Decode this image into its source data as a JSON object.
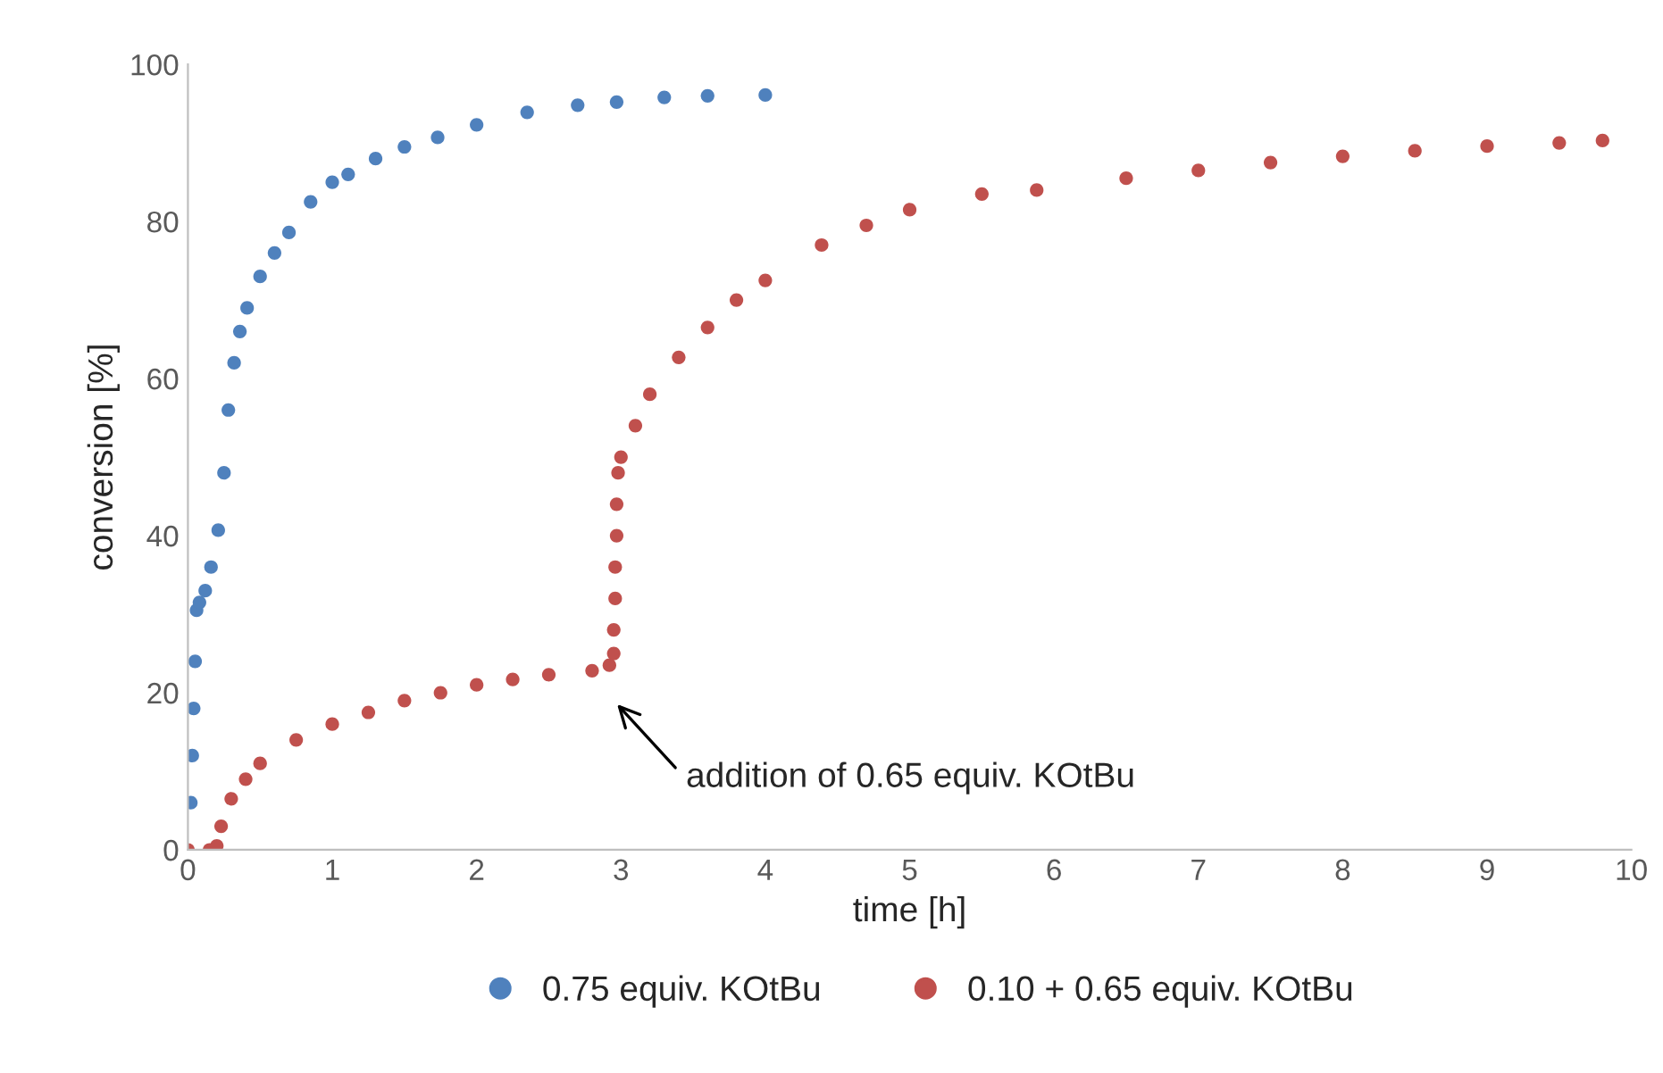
{
  "chart_data": {
    "type": "scatter",
    "xlabel": "time [h]",
    "ylabel": "conversion [%]",
    "xlim": [
      0,
      10
    ],
    "ylim": [
      0,
      100
    ],
    "xticks": [
      0,
      1,
      2,
      3,
      4,
      5,
      6,
      7,
      8,
      9,
      10
    ],
    "yticks": [
      0,
      20,
      40,
      60,
      80,
      100
    ],
    "grid": false,
    "legend": "bottom",
    "marker": "circle",
    "series": [
      {
        "name": "0.75 equiv. KOtBu",
        "color": "#4f81bd",
        "x": [
          0.02,
          0.03,
          0.04,
          0.05,
          0.06,
          0.08,
          0.12,
          0.16,
          0.21,
          0.25,
          0.28,
          0.32,
          0.36,
          0.41,
          0.5,
          0.6,
          0.7,
          0.85,
          1.0,
          1.11,
          1.3,
          1.5,
          1.73,
          2.0,
          2.35,
          2.7,
          2.97,
          3.3,
          3.6,
          4.0
        ],
        "values": [
          6,
          12,
          18,
          24,
          30.5,
          31.5,
          33,
          36,
          40.7,
          48,
          56,
          62,
          66,
          69,
          73,
          76,
          78.6,
          82.5,
          85,
          86,
          88,
          89.5,
          90.7,
          92.3,
          93.9,
          94.8,
          95.2,
          95.8,
          96,
          96.1
        ]
      },
      {
        "name": "0.10 + 0.65 equiv. KOtBu",
        "color": "#c0504d",
        "x": [
          0,
          0.15,
          0.2,
          0.23,
          0.3,
          0.4,
          0.5,
          0.75,
          1.0,
          1.25,
          1.5,
          1.75,
          2.0,
          2.25,
          2.5,
          2.8,
          2.92,
          2.95,
          2.95,
          2.96,
          2.96,
          2.97,
          2.97,
          2.98,
          3.0,
          3.1,
          3.2,
          3.4,
          3.6,
          3.8,
          4.0,
          4.39,
          4.7,
          5.0,
          5.5,
          5.88,
          6.5,
          7.0,
          7.5,
          8.0,
          8.5,
          9.0,
          9.5,
          9.8
        ],
        "values": [
          0,
          0,
          0.5,
          3,
          6.5,
          9,
          11,
          14,
          16,
          17.5,
          19,
          20,
          21,
          21.7,
          22.3,
          22.8,
          23.5,
          25,
          28,
          32,
          36,
          40,
          44,
          48,
          50,
          54,
          58,
          62.7,
          66.5,
          70,
          72.5,
          77,
          79.5,
          81.5,
          83.5,
          84,
          85.5,
          86.5,
          87.5,
          88.3,
          89,
          89.6,
          90,
          90.3
        ]
      }
    ],
    "annotations": [
      "addition of 0.65 equiv. KOtBu"
    ]
  }
}
